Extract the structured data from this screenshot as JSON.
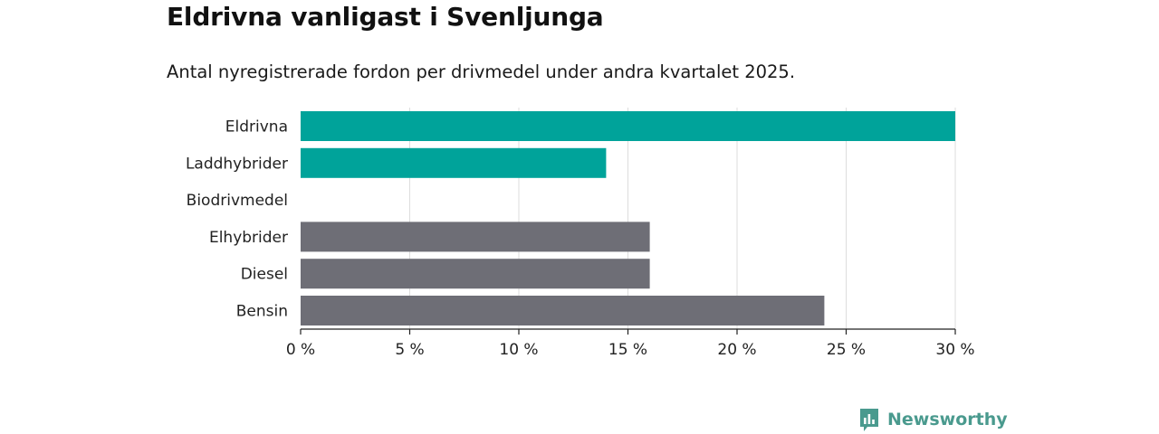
{
  "title": "Eldrivna vanligast i Svenljunga",
  "subtitle": "Antal nyregistrerade fordon per drivmedel under andra kvartalet 2025.",
  "brand": {
    "name": "Newsworthy",
    "icon": "newsworthy-logo-icon",
    "color": "#4a9a8e"
  },
  "chart_data": {
    "type": "bar",
    "orientation": "horizontal",
    "categories": [
      "Eldrivna",
      "Laddhybrider",
      "Biodrivmedel",
      "Elhybrider",
      "Diesel",
      "Bensin"
    ],
    "values": [
      30,
      14,
      0,
      16,
      16,
      24
    ],
    "colors": [
      "#00a39a",
      "#00a39a",
      "#00a39a",
      "#6e6e76",
      "#6e6e76",
      "#6e6e76"
    ],
    "xlim": [
      0,
      30
    ],
    "xticks": [
      0,
      5,
      10,
      15,
      20,
      25,
      30
    ],
    "xtick_labels": [
      "0 %",
      "5 %",
      "10 %",
      "15 %",
      "20 %",
      "25 %",
      "30 %"
    ],
    "grid": "vertical",
    "legend": "none"
  }
}
